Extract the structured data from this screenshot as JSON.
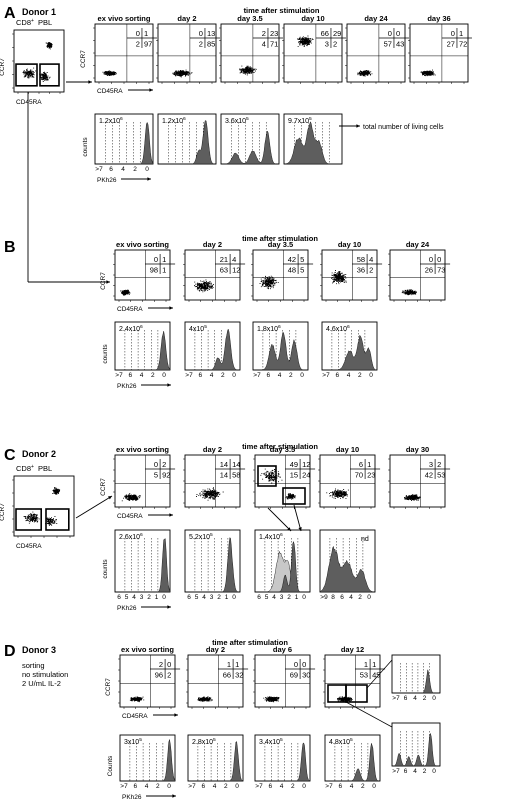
{
  "colors": {
    "ink": "#000000",
    "hist_fill": "#5e5e5e",
    "hist_light": "#c8c8c8"
  },
  "common": {
    "time_after_stimulation": "time after stimulation",
    "ccr7": "CCR7",
    "cd45ra": "CD45RA",
    "counts_lower": "counts",
    "counts_upper": "Counts",
    "pkh26": "PKh26",
    "cd8": "CD8",
    "cd8_sup": "+",
    "pbl": "PBL",
    "total_living": "total number of living cells",
    "tick_10_0": "10",
    "tick_exp_0": "0",
    "tick_exp_1": "1",
    "tick_exp_2": "2",
    "tick_exp_3": "3",
    "tick_exp_4": "4"
  },
  "panels": [
    {
      "letter": "A",
      "donor": "Donor 1",
      "conditions": [],
      "scatter": [
        {
          "col": "ex vivo sorting",
          "q": [
            "0",
            "1",
            "2",
            "97"
          ]
        },
        {
          "col": "day 2",
          "q": [
            "0",
            "13",
            "2",
            "85"
          ]
        },
        {
          "col": "day 3.5",
          "q": [
            "2",
            "23",
            "4",
            "71"
          ]
        },
        {
          "col": "day 10",
          "q": [
            "66",
            "29",
            "3",
            "2"
          ]
        },
        {
          "col": "day 24",
          "q": [
            "0",
            "0",
            "57",
            "43"
          ]
        },
        {
          "col": "day 36",
          "q": [
            "0",
            "1",
            "27",
            "72"
          ]
        }
      ],
      "hist": [
        {
          "count": "1.2x10",
          "exp": "6",
          "xt": [
            ">7",
            "6",
            "4",
            "2",
            "0"
          ]
        },
        {
          "count": "1.2x10",
          "exp": "6",
          "xt": []
        },
        {
          "count": "3.6x10",
          "exp": "5",
          "xt": []
        },
        {
          "count": "9.7x10",
          "exp": "5",
          "xt": []
        }
      ]
    },
    {
      "letter": "B",
      "donor": "",
      "conditions": [],
      "scatter": [
        {
          "col": "ex vivo sorting",
          "q": [
            "0",
            "1",
            "98",
            "1"
          ]
        },
        {
          "col": "day 2",
          "q": [
            "21",
            "4",
            "63",
            "12"
          ]
        },
        {
          "col": "day 3.5",
          "q": [
            "42",
            "5",
            "48",
            "5"
          ]
        },
        {
          "col": "day 10",
          "q": [
            "58",
            "4",
            "36",
            "2"
          ]
        },
        {
          "col": "day 24",
          "q": [
            "0",
            "0",
            "26",
            "73"
          ]
        }
      ],
      "hist": [
        {
          "count": "2.4x10",
          "exp": "6",
          "xt": [
            ">7",
            "6",
            "4",
            "2",
            "0"
          ]
        },
        {
          "count": "4x10",
          "exp": "5",
          "xt": [
            ">7",
            "6",
            "4",
            "2",
            "0"
          ]
        },
        {
          "count": "1.8x10",
          "exp": "6",
          "xt": [
            ">7",
            "6",
            "4",
            "2",
            "0"
          ]
        },
        {
          "count": "4.6x10",
          "exp": "6",
          "xt": [
            ">7",
            "6",
            "4",
            "2",
            "0"
          ]
        }
      ]
    },
    {
      "letter": "C",
      "donor": "Donor 2",
      "conditions": [],
      "scatter": [
        {
          "col": "ex vivo sorting",
          "q": [
            "0",
            "2",
            "5",
            "92"
          ]
        },
        {
          "col": "day 2",
          "q": [
            "14",
            "14",
            "14",
            "58"
          ]
        },
        {
          "col": "day 3.5",
          "q": [
            "49",
            "12",
            "15",
            "24"
          ]
        },
        {
          "col": "day 10",
          "q": [
            "6",
            "1",
            "70",
            "23"
          ]
        },
        {
          "col": "day 30",
          "q": [
            "3",
            "2",
            "42",
            "53"
          ]
        }
      ],
      "hist": [
        {
          "count": "2.6x10",
          "exp": "6",
          "xt": [
            "6",
            "5",
            "4",
            "3",
            "2",
            "1",
            "0"
          ]
        },
        {
          "count": "5.2x10",
          "exp": "5",
          "xt": [
            "6",
            "5",
            "4",
            "3",
            "2",
            "1",
            "0"
          ]
        },
        {
          "count": "1.4x10",
          "exp": "6",
          "xt": [
            "6",
            "5",
            "4",
            "3",
            "2",
            "1",
            "0"
          ]
        },
        {
          "count": "nd",
          "exp": "",
          "xt": [
            ">9",
            "8",
            "6",
            "4",
            "2",
            "0"
          ]
        }
      ]
    },
    {
      "letter": "D",
      "donor": "Donor 3",
      "conditions": [
        "sorting",
        "no stimulation",
        "2 U/mL IL-2"
      ],
      "scatter": [
        {
          "col": "ex vivo sorting",
          "q": [
            "2",
            "0",
            "96",
            "2"
          ]
        },
        {
          "col": "day 2",
          "q": [
            "1",
            "1",
            "66",
            "32"
          ]
        },
        {
          "col": "day 6",
          "q": [
            "0",
            "0",
            "69",
            "30"
          ]
        },
        {
          "col": "day 12",
          "q": [
            "1",
            "1",
            "53",
            "45"
          ]
        }
      ],
      "hist": [
        {
          "count": "3x10",
          "exp": "5",
          "xt": [
            ">7",
            "6",
            "4",
            "2",
            "0"
          ]
        },
        {
          "count": "2.8x10",
          "exp": "5",
          "xt": [
            ">7",
            "6",
            "4",
            "2",
            "0"
          ]
        },
        {
          "count": "3.4x10",
          "exp": "5",
          "xt": [
            ">7",
            "6",
            "4",
            "2",
            "0"
          ]
        },
        {
          "count": "4.8x10",
          "exp": "5",
          "xt": [
            ">7",
            "6",
            "4",
            "2",
            "0"
          ]
        }
      ],
      "side_hist_ticks": [
        ">7",
        "6",
        "4",
        "2",
        "0"
      ]
    }
  ]
}
